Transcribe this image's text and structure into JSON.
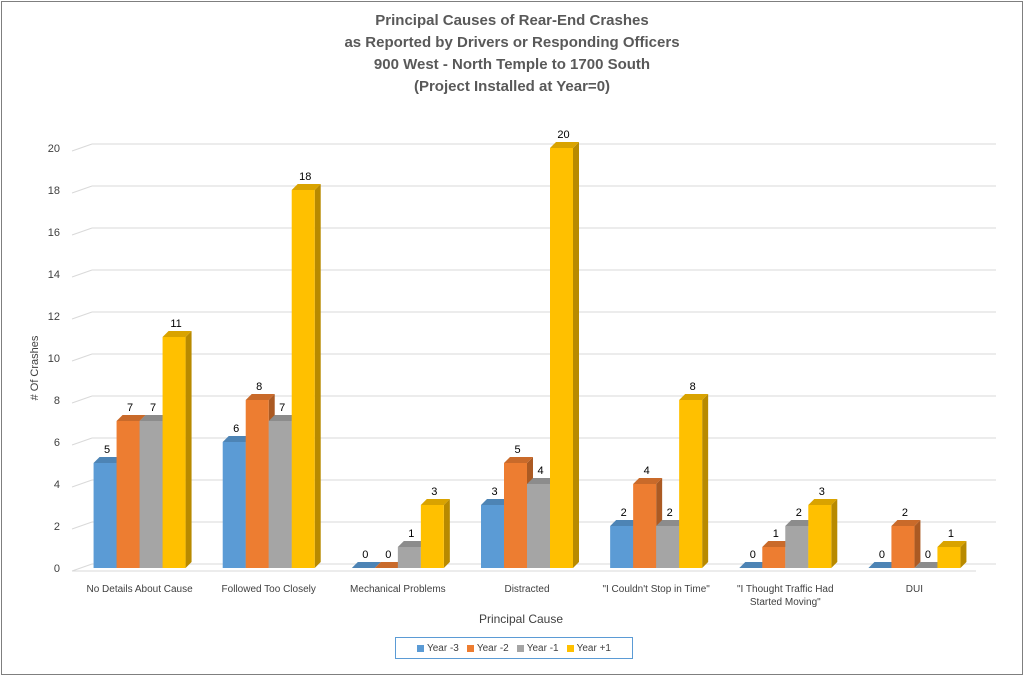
{
  "chart_data": {
    "type": "bar",
    "title": [
      "Principal Causes of Rear-End Crashes",
      "as Reported by Drivers or Responding Officers",
      "900 West - North Temple to 1700 South",
      "(Project Installed at Year=0)"
    ],
    "xlabel": "Principal Cause",
    "ylabel": "# Of Crashes",
    "ylim": [
      0,
      20
    ],
    "yticks": [
      0,
      2,
      4,
      6,
      8,
      10,
      12,
      14,
      16,
      18,
      20
    ],
    "grid": true,
    "legend_position": "bottom",
    "categories": [
      [
        "No Details About Cause"
      ],
      [
        "Followed Too Closely"
      ],
      [
        "Mechanical Problems"
      ],
      [
        "Distracted"
      ],
      [
        "\"I Couldn't Stop in Time\""
      ],
      [
        "\"I Thought Traffic Had",
        "Started Moving\""
      ],
      [
        "DUI"
      ]
    ],
    "series": [
      {
        "name": "Year -3",
        "color": "#5b9bd5",
        "values": [
          5,
          6,
          0,
          3,
          2,
          0,
          0
        ]
      },
      {
        "name": "Year -2",
        "color": "#ed7d31",
        "values": [
          7,
          8,
          0,
          5,
          4,
          1,
          2
        ]
      },
      {
        "name": "Year -1",
        "color": "#a5a5a5",
        "values": [
          7,
          7,
          1,
          4,
          2,
          2,
          0
        ]
      },
      {
        "name": "Year +1",
        "color": "#ffc000",
        "values": [
          11,
          18,
          3,
          20,
          8,
          3,
          1
        ]
      }
    ]
  }
}
